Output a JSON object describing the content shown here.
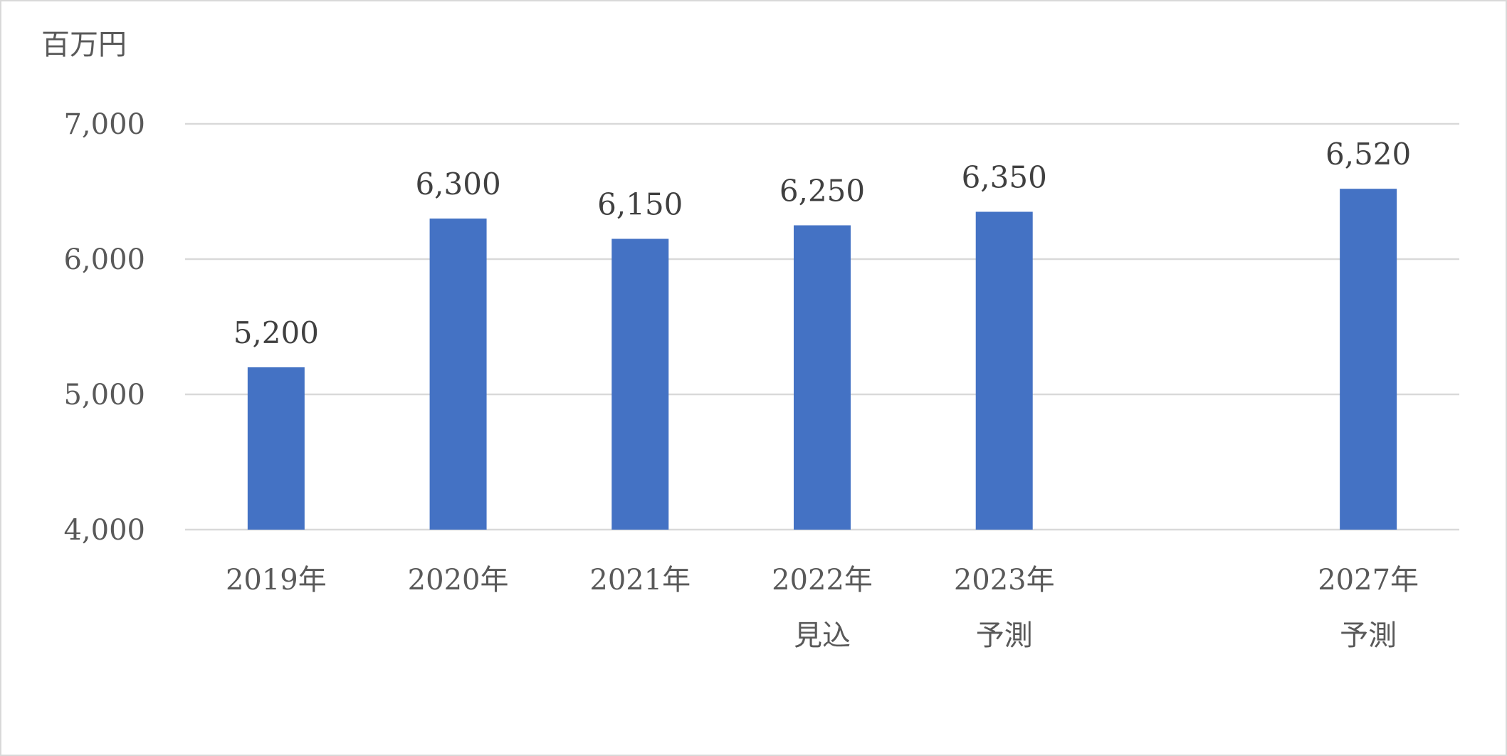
{
  "chart_data": {
    "type": "bar",
    "unit_label": "百万円",
    "categories": [
      [
        "2019年"
      ],
      [
        "2020年"
      ],
      [
        "2021年"
      ],
      [
        "2022年",
        "見込"
      ],
      [
        "2023年",
        "予測"
      ],
      [
        "2027年",
        "予測"
      ]
    ],
    "category_slots": [
      0,
      1,
      2,
      3,
      4,
      6
    ],
    "values": [
      5200,
      6300,
      6150,
      6250,
      6350,
      6520
    ],
    "data_labels": [
      "5,200",
      "6,300",
      "6,150",
      "6,250",
      "6,350",
      "6,520"
    ],
    "ylim": [
      4000,
      7000
    ],
    "yticks": [
      4000,
      5000,
      6000,
      7000
    ],
    "ytick_labels": [
      "4,000",
      "5,000",
      "6,000",
      "7,000"
    ],
    "grid": true,
    "legend": "none",
    "bar_color": "#4472c4"
  }
}
